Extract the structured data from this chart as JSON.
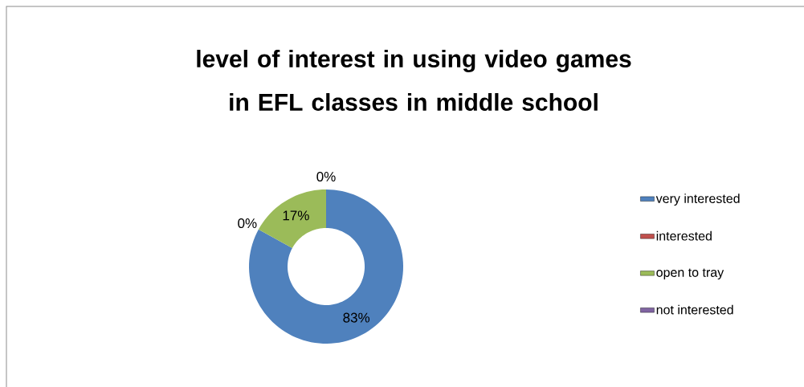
{
  "chart_data": {
    "type": "donut",
    "title": "level of interest in using video games in EFL classes in middle school",
    "categories": [
      "very interested",
      "interested",
      "open to tray",
      "not interested"
    ],
    "values": [
      83,
      0,
      17,
      0
    ],
    "colors": [
      "#4f81bd",
      "#c0504d",
      "#9bbb59",
      "#8064a2"
    ],
    "value_labels": [
      "83%",
      "0%",
      "17%",
      "0%"
    ],
    "legend": "right"
  }
}
